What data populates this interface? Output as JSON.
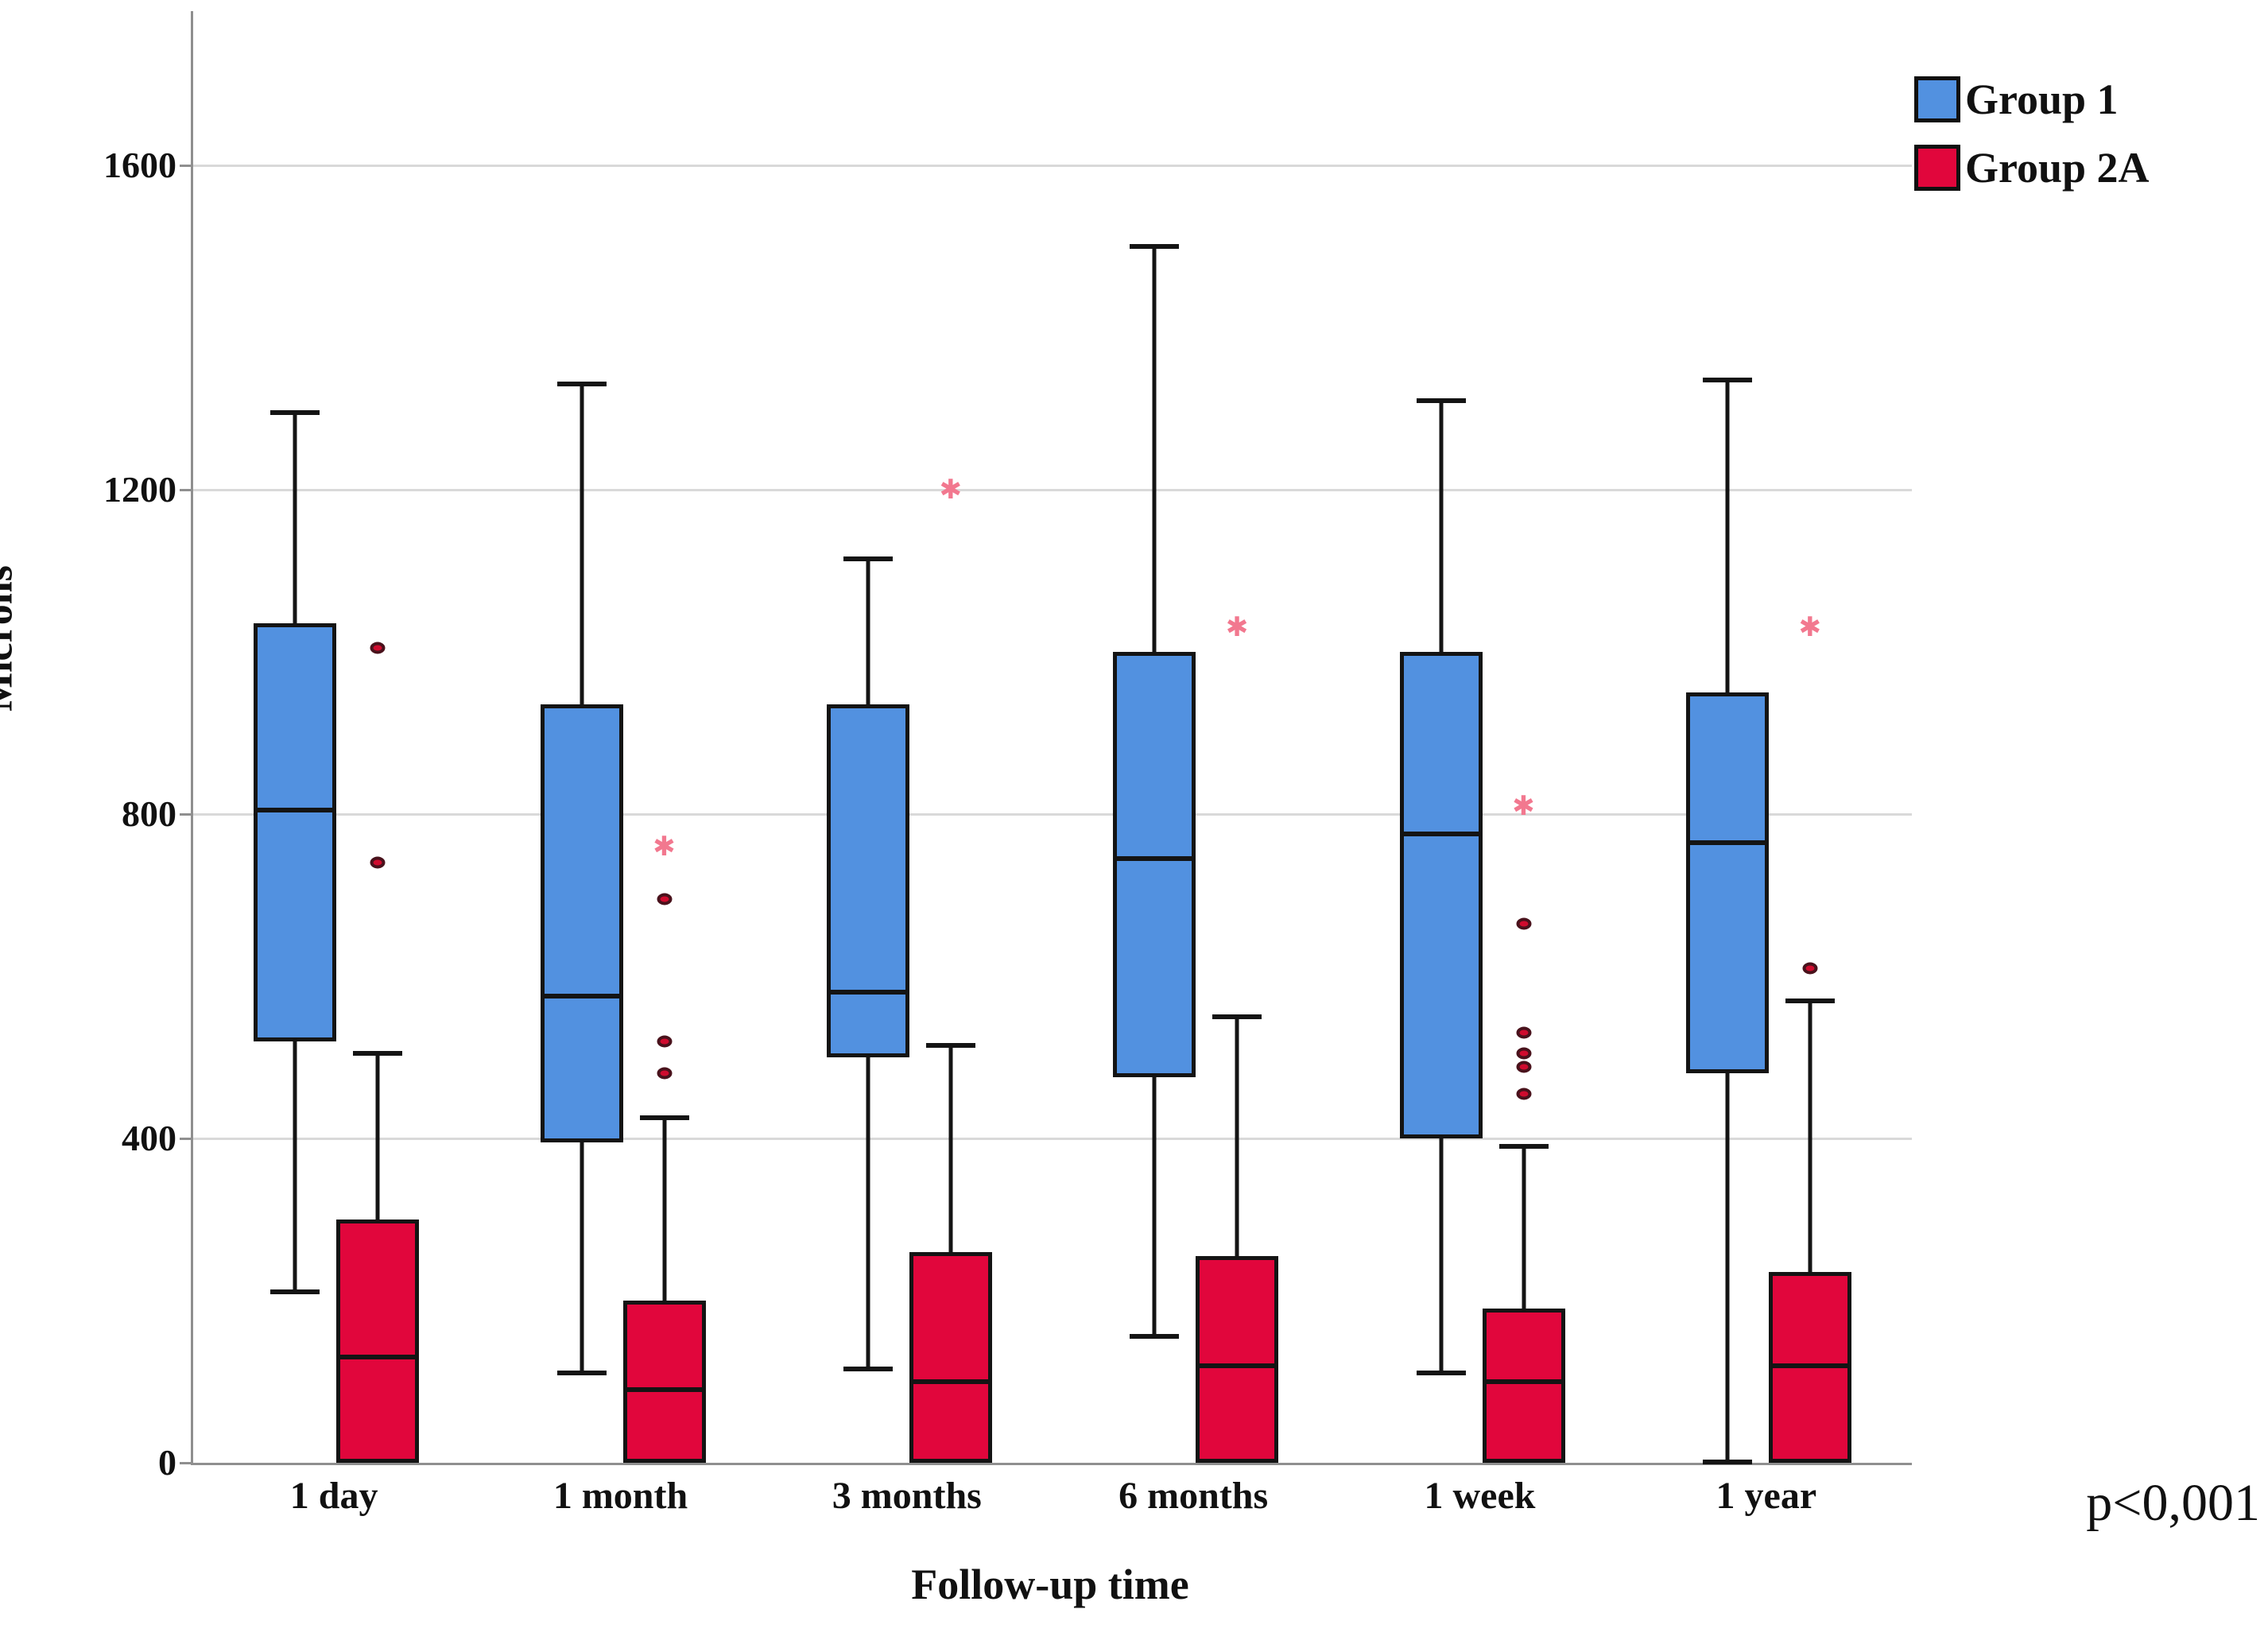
{
  "chart_data": {
    "type": "boxplot",
    "title": "",
    "xlabel": "Follow-up time",
    "ylabel": "Microns",
    "annotation": "p<0,001",
    "ylim": [
      0,
      1790
    ],
    "yticks": [
      0,
      400,
      800,
      1200,
      1600
    ],
    "grid": "horizontal",
    "legend_position": "top-right",
    "categories": [
      "1 day",
      "1 month",
      "3 months",
      "6 months",
      "1 week",
      "1 year"
    ],
    "axis_color": "#8f8f8f",
    "gridline_color": "#d9d9d9",
    "box_border_color": "#141414",
    "outlier_dot_color": "#cf0b2e",
    "outlier_star_color": "#f2788f",
    "series": [
      {
        "name": "Group 1",
        "color": "#5291e0",
        "boxes": [
          {
            "category": "1 day",
            "min": 210,
            "q1": 520,
            "median": 805,
            "q3": 1035,
            "max": 1295,
            "dots": [],
            "stars": []
          },
          {
            "category": "1 month",
            "min": 110,
            "q1": 395,
            "median": 575,
            "q3": 935,
            "max": 1330,
            "dots": [],
            "stars": []
          },
          {
            "category": "3 months",
            "min": 115,
            "q1": 500,
            "median": 580,
            "q3": 935,
            "max": 1115,
            "dots": [],
            "stars": []
          },
          {
            "category": "6 months",
            "min": 155,
            "q1": 475,
            "median": 745,
            "q3": 1000,
            "max": 1500,
            "dots": [],
            "stars": []
          },
          {
            "category": "1 week",
            "min": 110,
            "q1": 400,
            "median": 775,
            "q3": 1000,
            "max": 1310,
            "dots": [],
            "stars": []
          },
          {
            "category": "1 year",
            "min": 0,
            "q1": 480,
            "median": 765,
            "q3": 950,
            "max": 1335,
            "dots": [],
            "stars": []
          }
        ]
      },
      {
        "name": "Group 2A",
        "color": "#e1063c",
        "boxes": [
          {
            "category": "1 day",
            "min": 0,
            "q1": 0,
            "median": 130,
            "q3": 300,
            "max": 505,
            "dots": [
              1005,
              740
            ],
            "stars": []
          },
          {
            "category": "1 month",
            "min": 0,
            "q1": 0,
            "median": 90,
            "q3": 200,
            "max": 425,
            "dots": [
              695,
              520,
              480
            ],
            "stars": [
              760
            ]
          },
          {
            "category": "3 months",
            "min": 0,
            "q1": 0,
            "median": 100,
            "q3": 260,
            "max": 515,
            "dots": [],
            "stars": [
              1200
            ]
          },
          {
            "category": "6 months",
            "min": 0,
            "q1": 0,
            "median": 120,
            "q3": 255,
            "max": 550,
            "dots": [],
            "stars": [
              1030
            ]
          },
          {
            "category": "1 week",
            "min": 0,
            "q1": 0,
            "median": 100,
            "q3": 190,
            "max": 390,
            "dots": [
              665,
              530,
              505,
              488,
              455
            ],
            "stars": [
              810
            ]
          },
          {
            "category": "1 year",
            "min": 0,
            "q1": 0,
            "median": 120,
            "q3": 235,
            "max": 570,
            "dots": [
              610
            ],
            "stars": [
              1030
            ]
          }
        ]
      }
    ]
  }
}
